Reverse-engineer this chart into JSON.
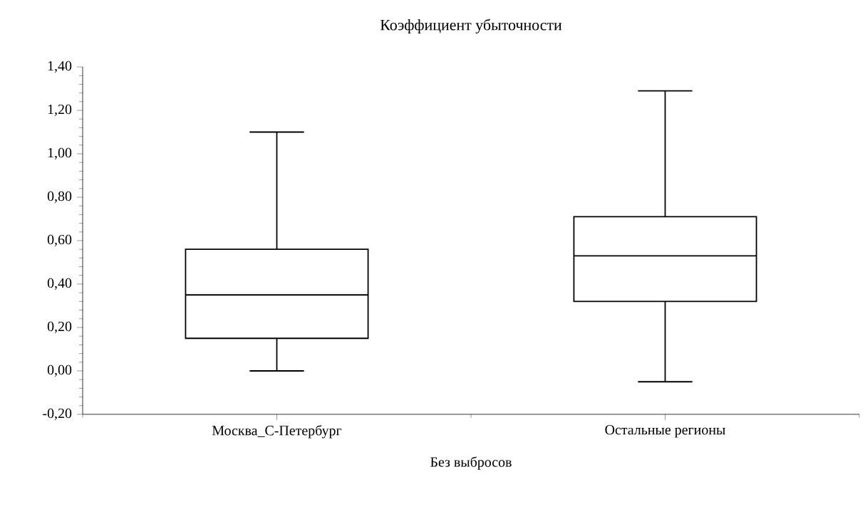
{
  "chart_data": {
    "type": "box",
    "title": "Коэффициент убыточности",
    "xlabel": "Без выбросов",
    "categories": [
      "Москва_С-Петербург",
      "Остальные регионы"
    ],
    "boxes": [
      {
        "low": 0.0,
        "q1": 0.15,
        "median": 0.35,
        "q3": 0.56,
        "high": 1.1
      },
      {
        "low": -0.05,
        "q1": 0.32,
        "median": 0.53,
        "q3": 0.71,
        "high": 1.29
      }
    ],
    "ylim": [
      -0.2,
      1.4
    ],
    "yticks": [
      {
        "value": -0.2,
        "label": "-0,20"
      },
      {
        "value": 0.0,
        "label": "0,00"
      },
      {
        "value": 0.2,
        "label": "0,20"
      },
      {
        "value": 0.4,
        "label": "0,40"
      },
      {
        "value": 0.6,
        "label": "0,60"
      },
      {
        "value": 0.8,
        "label": "0,80"
      },
      {
        "value": 1.0,
        "label": "1,00"
      },
      {
        "value": 1.2,
        "label": "1,20"
      },
      {
        "value": 1.4,
        "label": "1,40"
      }
    ],
    "grid": false
  }
}
